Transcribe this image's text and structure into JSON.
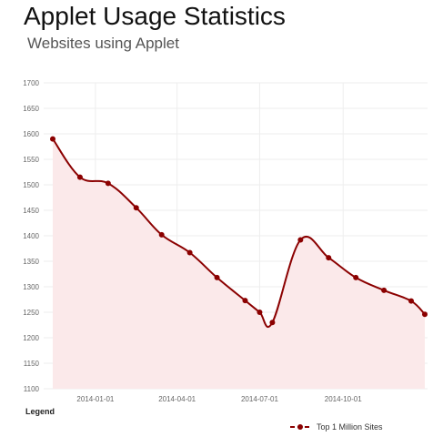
{
  "header": {
    "title": "Applet Usage Statistics",
    "subtitle": "Websites using Applet"
  },
  "legend": {
    "heading": "Legend",
    "position": "bottom-right"
  },
  "colors": {
    "line": "#8b0000",
    "fill": "#fbe9ea",
    "grid": "#eeeeee",
    "tick_text": "#666666"
  },
  "chart_data": {
    "type": "area",
    "x": [
      "2013-11-15",
      "2013-12-15",
      "2014-01-15",
      "2014-02-15",
      "2014-03-15",
      "2014-04-15",
      "2014-05-15",
      "2014-06-15",
      "2014-07-01",
      "2014-07-15",
      "2014-08-15",
      "2014-09-15",
      "2014-10-15",
      "2014-11-15",
      "2014-12-15",
      "2014-12-30"
    ],
    "series": [
      {
        "name": "Top 1 Million Sites",
        "values": [
          1590,
          1515,
          1503,
          1455,
          1402,
          1367,
          1318,
          1273,
          1250,
          1230,
          1392,
          1357,
          1318,
          1293,
          1272,
          1246
        ]
      }
    ],
    "xlabel": "",
    "ylabel": "",
    "ylim": [
      1100,
      1700
    ],
    "yticks": [
      1100,
      1150,
      1200,
      1250,
      1300,
      1350,
      1400,
      1450,
      1500,
      1550,
      1600,
      1650,
      1700
    ],
    "xticks": [
      "2014-01-01",
      "2014-04-01",
      "2014-07-01",
      "2014-10-01"
    ],
    "grid": true
  }
}
